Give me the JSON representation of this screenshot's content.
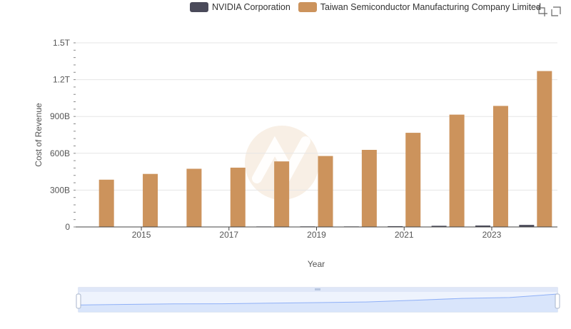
{
  "legend": {
    "series_0": "NVIDIA Corporation",
    "series_1": "Taiwan Semiconductor Manufacturing Company Limited"
  },
  "toolbar": {
    "zoom_icon": "zoom-icon",
    "restore_icon": "restore-icon"
  },
  "colors": {
    "nvidia": "#4a4a5a",
    "tsmc": "#cc935c",
    "grid": "#e6e6e6",
    "axis": "#555555",
    "slider_fill": "#d6e3fb",
    "slider_border": "#c5d2ea",
    "slider_line": "#8fb0f7",
    "watermark": "#f3e2cf"
  },
  "chart_data": {
    "type": "bar",
    "xlabel": "Year",
    "ylabel": "Cost of Revenue",
    "categories": [
      "2014",
      "2015",
      "2016",
      "2017",
      "2018",
      "2019",
      "2020",
      "2021",
      "2022",
      "2023",
      "2024"
    ],
    "x_tick_labels": [
      "2015",
      "2017",
      "2019",
      "2021",
      "2023"
    ],
    "y_tick_labels": [
      "0",
      "300B",
      "600B",
      "900B",
      "1.2T",
      "1.5T"
    ],
    "ylim": [
      0,
      1500000000000
    ],
    "grid": true,
    "legend_position": "top",
    "series": [
      {
        "name": "NVIDIA Corporation",
        "values": [
          2000000000,
          2100000000,
          2300000000,
          2800000000,
          3900000000,
          4500000000,
          4200000000,
          6300000000,
          9400000000,
          11600000000,
          16600000000
        ]
      },
      {
        "name": "Taiwan Semiconductor Manufacturing Company Limited",
        "values": [
          385000000000,
          432000000000,
          474000000000,
          483000000000,
          534000000000,
          578000000000,
          628000000000,
          767000000000,
          915000000000,
          986000000000,
          1270000000000
        ]
      }
    ]
  }
}
